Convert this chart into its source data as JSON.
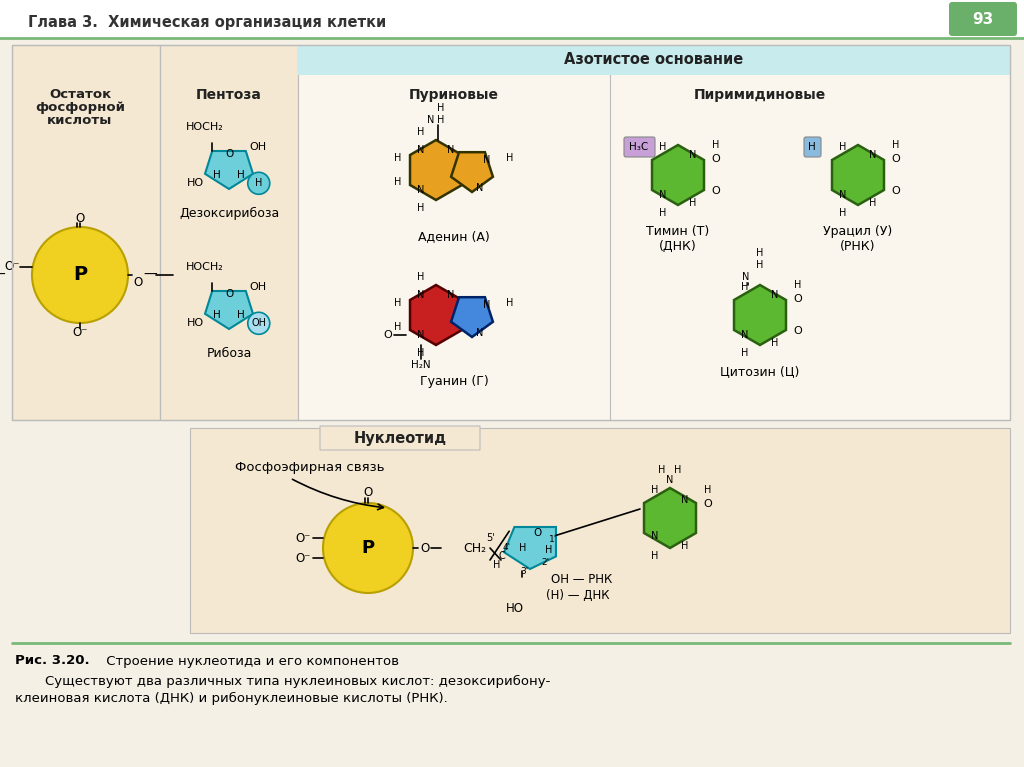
{
  "page_bg": "#f5f0e6",
  "header_text": "Глава 3.  Химическая организация клетки",
  "page_num": "93",
  "fig_caption_bold": "Рис. 3.20.",
  "fig_caption_rest": " Строение нуклеотида и его компонентов",
  "body_text_line1": "    Существуют два различных типа нуклеиновых кислот: дезоксирибону-",
  "body_text_line2": "клеиновая кислота (ДНК) и рибонуклеиновые кислоты (РНК).",
  "header_line_color": "#7ab87a",
  "azot_box_color": "#c8ecee",
  "main_box_bg": "#faf6ed",
  "left_section_bg": "#f5e8d2",
  "nucleotide_box_color": "#f5e8d2",
  "pentose_cyan": "#6dcfda",
  "pentose_cyan_dark": "#008899",
  "phosphate_yellow": "#f0d020",
  "phosphate_border": "#b8a000",
  "adenine_color": "#e8a020",
  "guanine_hex_color": "#c82020",
  "guanine_pent_color": "#4488dd",
  "green_base": "#5cb830",
  "green_base_dark": "#2a6010",
  "thymine_purple": "#c8a0d8",
  "uracil_blue": "#88bbdd",
  "badge_green": "#6ab06a",
  "text_dark": "#222222",
  "box_border": "#bbbbbb",
  "header_bg": "#ffffff",
  "azot_title": "Азотистое основание",
  "pentose_header": "Пентоза",
  "purine_header": "Пуриновые",
  "pyrimidine_header": "Пиримидиновые",
  "left_header1": "Остаток",
  "left_header2": "фосфорной",
  "left_header3": "кислоты",
  "deoxy_label": "Дезоксирибоза",
  "ribose_label": "Рибоза",
  "adenine_label": "Аденин (А)",
  "guanine_label": "Гуанин (Г)",
  "thymine_label": "Тимин (Т)\n(ДНК)",
  "uracil_label": "Урацил (У)\n(РНК)",
  "cytosine_label": "Цитозин (Ц)",
  "nucleotide_title": "Нуклеотид",
  "phospho_bond_text": "Фосфоэфирная связь",
  "oh_rnk": "OH — РНК",
  "h_dnk": "(Н) — ДНК"
}
